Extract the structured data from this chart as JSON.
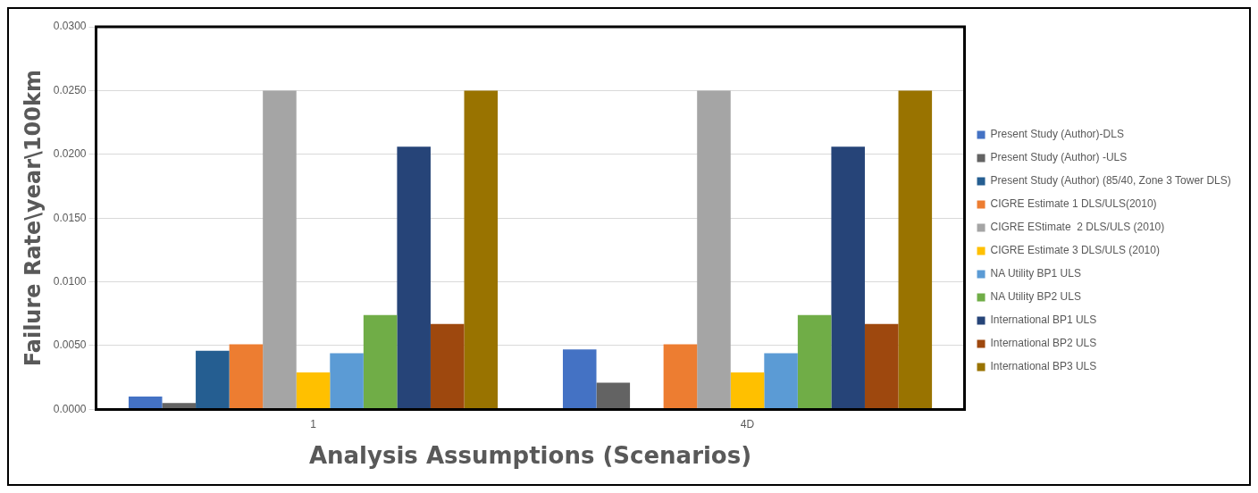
{
  "chart_data": {
    "type": "bar",
    "xlabel": "Analysis Assumptions (Scenarios)",
    "ylabel": "Failure Rate\\year\\100km",
    "categories": [
      "1",
      "4D"
    ],
    "series": [
      {
        "name": "Present Study (Author)-DLS",
        "color": "#4472c4",
        "values": [
          0.001,
          0.0047
        ]
      },
      {
        "name": "Present Study (Author) -ULS",
        "color": "#636363",
        "values": [
          0.0005,
          0.0021
        ]
      },
      {
        "name": "Present Study (Author) (85/40, Zone 3 Tower DLS)",
        "color": "#255e91",
        "values": [
          0.0046,
          null
        ]
      },
      {
        "name": "CIGRE Estimate 1 DLS/ULS(2010)",
        "color": "#ed7d31",
        "values": [
          0.0051,
          0.0051
        ]
      },
      {
        "name": "CIGRE EStimate  2 DLS/ULS (2010)",
        "color": "#a5a5a5",
        "values": [
          0.025,
          0.025
        ]
      },
      {
        "name": "CIGRE Estimate 3 DLS/ULS (2010)",
        "color": "#ffc000",
        "values": [
          0.0029,
          0.0029
        ]
      },
      {
        "name": "NA Utility BP1 ULS",
        "color": "#5b9bd5",
        "values": [
          0.0044,
          0.0044
        ]
      },
      {
        "name": "NA Utility BP2 ULS",
        "color": "#70ad47",
        "values": [
          0.0074,
          0.0074
        ]
      },
      {
        "name": "International BP1 ULS",
        "color": "#264478",
        "values": [
          0.0206,
          0.0206
        ]
      },
      {
        "name": "International BP2 ULS",
        "color": "#9e480e",
        "values": [
          0.0067,
          0.0067
        ]
      },
      {
        "name": "International BP3 ULS",
        "color": "#997300",
        "values": [
          0.025,
          0.025
        ]
      }
    ],
    "ylim": [
      0,
      0.03
    ],
    "yticks": [
      {
        "value": 0,
        "label": "0.0000"
      },
      {
        "value": 0.005,
        "label": "0.0050"
      },
      {
        "value": 0.01,
        "label": "0.0100"
      },
      {
        "value": 0.015,
        "label": "0.0150"
      },
      {
        "value": 0.02,
        "label": "0.0200"
      },
      {
        "value": 0.025,
        "label": "0.0250"
      },
      {
        "value": 0.03,
        "label": "0.0300"
      }
    ],
    "grid": "y",
    "legend": "right"
  }
}
